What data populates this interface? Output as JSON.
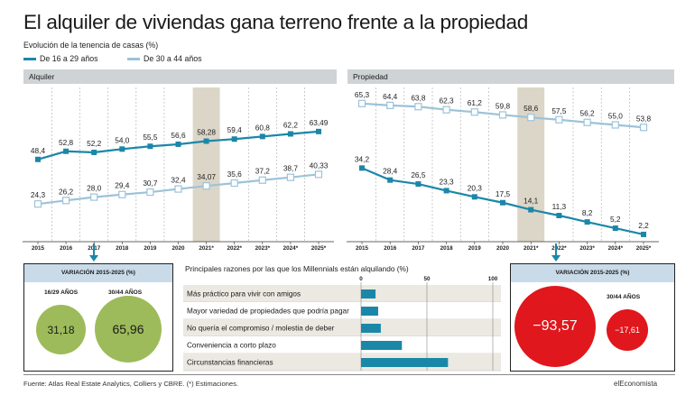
{
  "header": {
    "title": "El alquiler de viviendas gana terreno frente a la propiedad",
    "subtitle": "Evolución de la tenencia de casas (%)",
    "legend": [
      {
        "name": "De 16 a 29 años",
        "color": "#1b87a8"
      },
      {
        "name": "De 30 a 44 años",
        "color": "#9cc3d9"
      }
    ]
  },
  "chart_data": [
    {
      "type": "line",
      "panel": "Alquiler",
      "x": [
        "2015",
        "2016",
        "2017",
        "2018",
        "2019",
        "2020",
        "2021*",
        "2022*",
        "2023*",
        "2024*",
        "2025*"
      ],
      "highlight_category": "2021*",
      "series": [
        {
          "name": "De 16 a 29 años",
          "values": [
            48.4,
            52.8,
            52.2,
            54.0,
            55.5,
            56.6,
            58.28,
            59.4,
            60.8,
            62.2,
            63.49
          ],
          "labels": [
            "48,4",
            "52,8",
            "52,2",
            "54,0",
            "55,5",
            "56,6",
            "58,28",
            "59,4",
            "60,8",
            "62,2",
            "63,49"
          ]
        },
        {
          "name": "De 30 a 44 años",
          "values": [
            24.3,
            26.2,
            28.0,
            29.4,
            30.7,
            32.4,
            34.07,
            35.6,
            37.2,
            38.7,
            40.33
          ],
          "labels": [
            "24,3",
            "26,2",
            "28,0",
            "29,4",
            "30,7",
            "32,4",
            "34,07",
            "35,6",
            "37,2",
            "38,7",
            "40,33"
          ]
        }
      ],
      "ylim": [
        10,
        75
      ]
    },
    {
      "type": "line",
      "panel": "Propiedad",
      "x": [
        "2015",
        "2016",
        "2017",
        "2018",
        "2019",
        "2020",
        "2021*",
        "2022*",
        "2023*",
        "2024*",
        "2025*"
      ],
      "highlight_category": "2021*",
      "series": [
        {
          "name": "De 16 a 29 años",
          "values": [
            34.2,
            28.4,
            26.5,
            23.3,
            20.3,
            17.5,
            14.1,
            11.3,
            8.2,
            5.2,
            2.2
          ],
          "labels": [
            "34,2",
            "28,4",
            "26,5",
            "23,3",
            "20,3",
            "17,5",
            "14,1",
            "11,3",
            "8,2",
            "5,2",
            "2,2"
          ]
        },
        {
          "name": "De 30 a 44 años",
          "values": [
            65.3,
            64.4,
            63.8,
            62.3,
            61.2,
            59.8,
            58.6,
            57.5,
            56.2,
            55.0,
            53.8
          ],
          "labels": [
            "65,3",
            "64,4",
            "63,8",
            "62,3",
            "61,2",
            "59,8",
            "58,6",
            "57,5",
            "56,2",
            "55,0",
            "53,8"
          ]
        }
      ],
      "ylim": [
        0,
        75
      ]
    },
    {
      "type": "bar",
      "orientation": "horizontal",
      "title": "Principales razones por las que los Millennials están alquilando (%)",
      "categories": [
        "Más práctico para vivir con amigos",
        "Mayor variedad de propiedades que podría pagar",
        "No quería el compromiso / molestia de deber",
        "Conveniencia a corto plazo",
        "Circunstancias financieras"
      ],
      "values": [
        11,
        13,
        15,
        31,
        66
      ],
      "xlim": [
        0,
        100
      ],
      "ticks": [
        "0",
        "50",
        "100"
      ]
    }
  ],
  "variation_left": {
    "heading": "VARIACIÓN 2015-2025 (%)",
    "columns": [
      {
        "label": "16/29 AÑOS",
        "value": "31,18",
        "color": "#9dbb5a"
      },
      {
        "label": "30/44 AÑOS",
        "value": "65,96",
        "color": "#9dbb5a"
      }
    ]
  },
  "variation_right": {
    "heading": "VARIACIÓN 2015-2025 (%)",
    "columns": [
      {
        "label": "",
        "value": "−93,57",
        "color": "#e0171c"
      },
      {
        "label": "30/44 AÑOS",
        "value": "−17,61",
        "color": "#e0171c"
      }
    ]
  },
  "footer": {
    "source": "Fuente: Atlas Real Estate Analytics, Colliers y CBRE. (*) Estimaciones.",
    "brand": "elEconomista"
  }
}
